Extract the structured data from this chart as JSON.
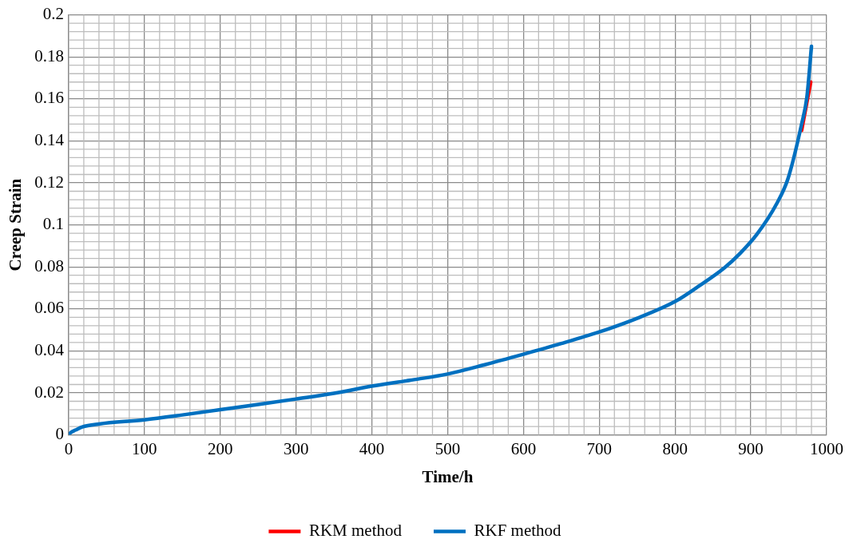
{
  "chart_data": {
    "type": "line",
    "xlabel": "Time/h",
    "ylabel": "Creep Strain",
    "xlim": [
      0,
      1000
    ],
    "xticks": [
      0,
      100,
      200,
      300,
      400,
      500,
      600,
      700,
      800,
      900,
      1000
    ],
    "ylim": [
      0,
      0.2
    ],
    "yticks": [
      0,
      0.02,
      0.04,
      0.06,
      0.08,
      0.1,
      0.12,
      0.14,
      0.16,
      0.18,
      0.2
    ],
    "grid": true,
    "legend": "bottom",
    "marker": "none",
    "line_style": "solid",
    "series": [
      {
        "name": "RKM method",
        "color": "#ff0000",
        "x": [
          967,
          979
        ],
        "values": [
          0.145,
          0.168
        ]
      },
      {
        "name": "RKF method",
        "color": "#0070c0",
        "x": [
          0,
          3,
          9,
          18,
          40,
          100,
          150,
          200,
          250,
          300,
          350,
          400,
          450,
          500,
          550,
          600,
          650,
          700,
          750,
          800,
          830,
          865,
          886,
          908,
          934,
          949,
          967,
          974,
          980
        ],
        "values": [
          0,
          0.0012,
          0.0023,
          0.0038,
          0.0052,
          0.0072,
          0.0095,
          0.012,
          0.0145,
          0.0171,
          0.0198,
          0.0232,
          0.026,
          0.029,
          0.0335,
          0.0384,
          0.0435,
          0.049,
          0.0555,
          0.0635,
          0.0705,
          0.0795,
          0.0865,
          0.0955,
          0.11,
          0.122,
          0.148,
          0.161,
          0.185
        ]
      }
    ]
  }
}
